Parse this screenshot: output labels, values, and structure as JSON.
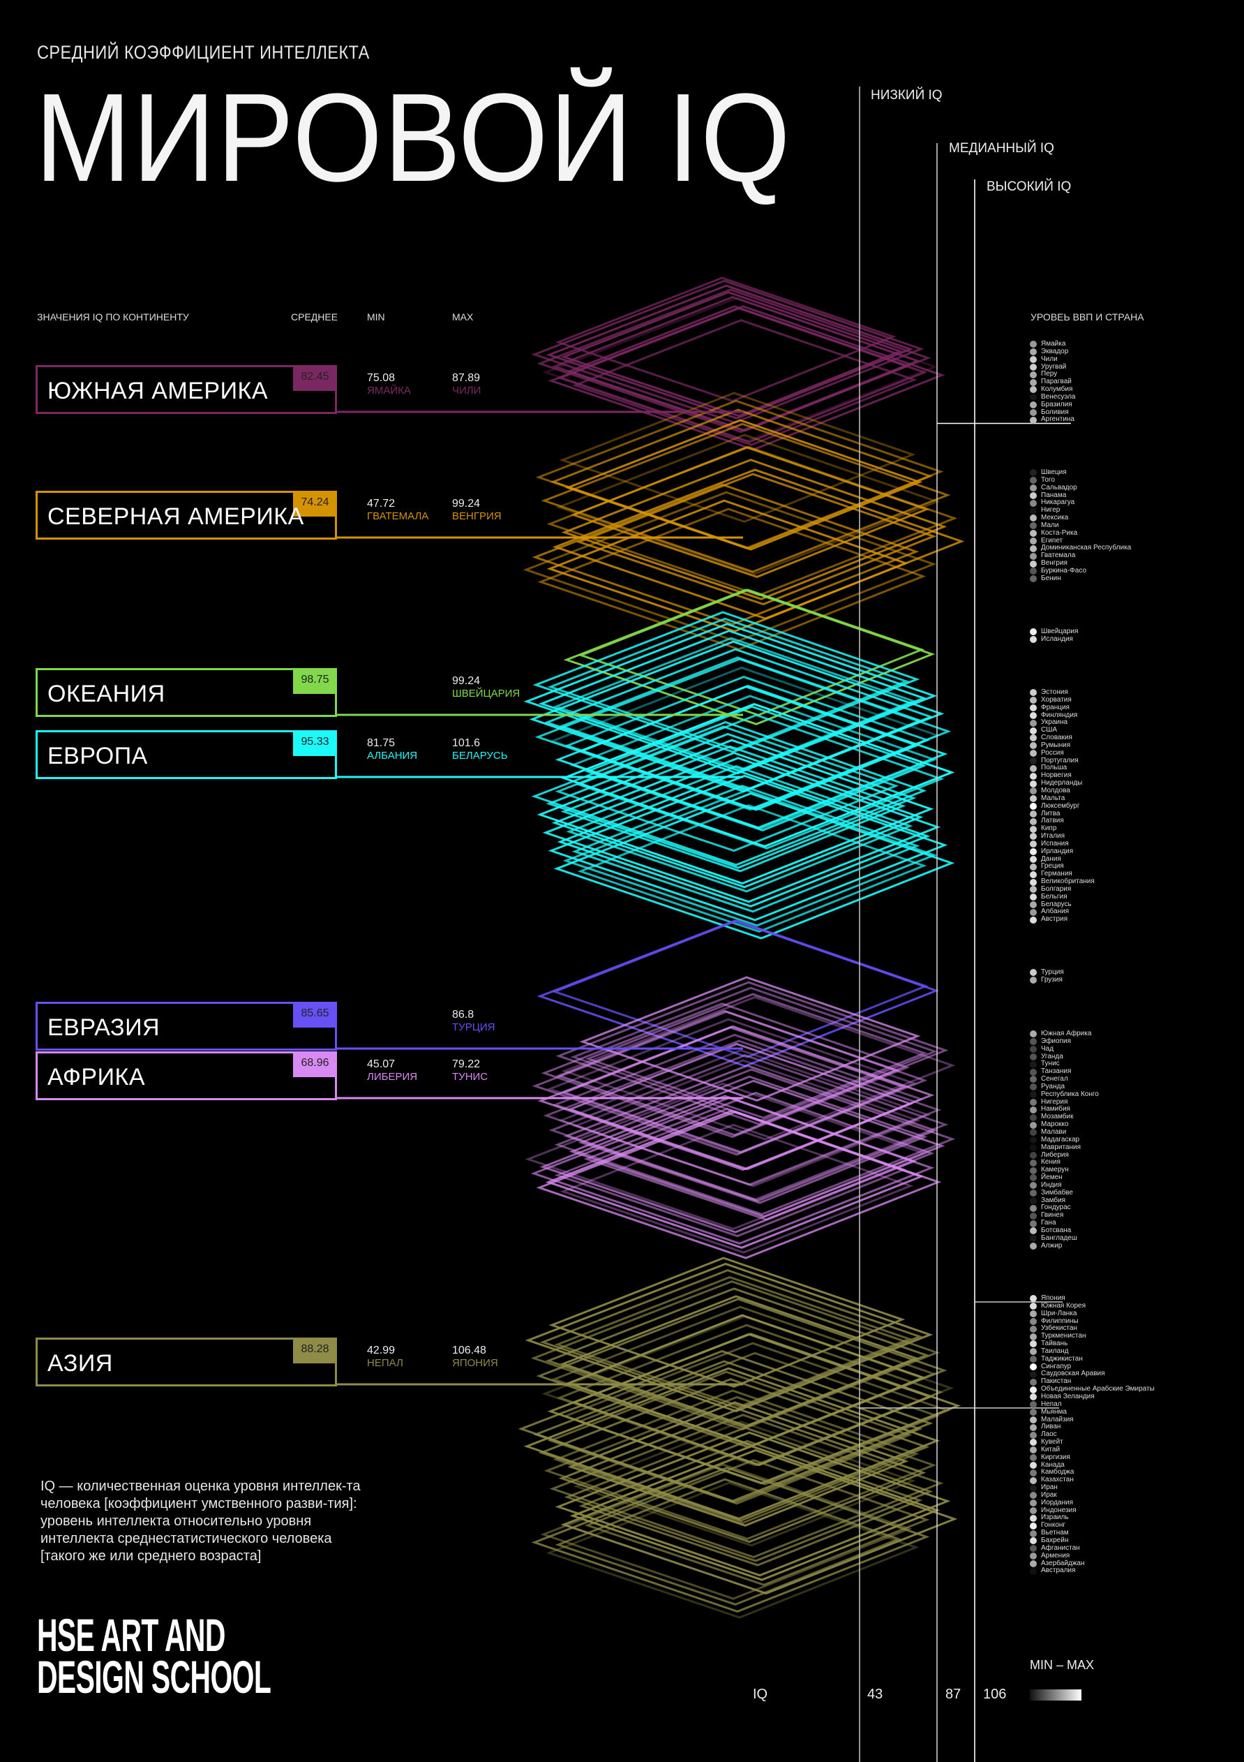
{
  "header": {
    "subtitle": "СРЕДНИЙ КОЭФФИЦИЕНТ ИНТЕЛЛЕКТА",
    "title": "МИРОВОЙ IQ"
  },
  "table_headers": {
    "continent": "ЗНАЧЕНИЯ IQ ПО КОНТИНЕНТУ",
    "mean": "СРЕДНЕЕ",
    "min": "MIN",
    "max": "MAX",
    "gdp": "УРОВЕЬ ВВП И СТРАНА"
  },
  "reference_lines": {
    "low": "НИЗКИЙ IQ",
    "median": "МЕДИАННЫЙ IQ",
    "high": "ВЫСОКИЙ IQ"
  },
  "legend": {
    "iq_label": "IQ",
    "low_value": "43",
    "median_value": "87",
    "high_value": "106",
    "gradient_label": "MIN – MAX"
  },
  "description": "IQ — количественная оценка уровня интеллек-та человека [коэффициент умственного разви-тия]: уровень интеллекта относительно уровня интеллекта среднестатистического человека [такого же или среднего возраста]",
  "logo": {
    "line1": "HSE ART AND",
    "line2": "DESIGN SCHOOL"
  },
  "chart_data": {
    "type": "stacked-diamonds",
    "title": "МИРОВОЙ IQ",
    "reference_values": {
      "low": 43,
      "median": 87,
      "high": 106
    },
    "continents": [
      {
        "name": "ЮЖНАЯ АМЕРИКА",
        "mean": "82.45",
        "color": "#7b2862",
        "min": {
          "value": "75.08",
          "country": "ЯМАЙКА"
        },
        "max": {
          "value": "87.89",
          "country": "ЧИЛИ"
        },
        "countries": [
          [
            "Ямайка",
            "#999999"
          ],
          [
            "Эквадор",
            "#aaaaaa"
          ],
          [
            "Чили",
            "#cccccc"
          ],
          [
            "Уругвай",
            "#cccccc"
          ],
          [
            "Перу",
            "#aaaaaa"
          ],
          [
            "Парагвай",
            "#aaaaaa"
          ],
          [
            "Колумбия",
            "#bbbbbb"
          ],
          [
            "Венесуэла",
            "#151515"
          ],
          [
            "Бразилия",
            "#aaaaaa"
          ],
          [
            "Боливия",
            "#999999"
          ],
          [
            "Аргентина",
            "#bbbbbb"
          ]
        ]
      },
      {
        "name": "СЕВЕРНАЯ АМЕРИКА",
        "mean": "74.24",
        "color": "#d69300",
        "min": {
          "value": "47.72",
          "country": "ГВАТЕМАЛА"
        },
        "max": {
          "value": "99.24",
          "country": "ВЕНГРИЯ"
        },
        "countries": [
          [
            "Швеция",
            "#222222"
          ],
          [
            "Того",
            "#666666"
          ],
          [
            "Сальвадор",
            "#999999"
          ],
          [
            "Панама",
            "#cccccc"
          ],
          [
            "Никарагуа",
            "#888888"
          ],
          [
            "Нигер",
            "#151515"
          ],
          [
            "Мексика",
            "#bbbbbb"
          ],
          [
            "Мали",
            "#666666"
          ],
          [
            "Коста-Рика",
            "#bbbbbb"
          ],
          [
            "Египет",
            "#aaaaaa"
          ],
          [
            "Доминиканская Республика",
            "#bbbbbb"
          ],
          [
            "Гватемала",
            "#999999"
          ],
          [
            "Венгрия",
            "#cccccc"
          ],
          [
            "Буркина-Фасо",
            "#555555"
          ],
          [
            "Бенин",
            "#666666"
          ]
        ]
      },
      {
        "name": "ОКЕАНИЯ",
        "mean": "98.75",
        "color": "#82d84b",
        "min": null,
        "max": {
          "value": "99.24",
          "country": "ШВЕЙЦАРИЯ"
        },
        "countries": [
          [
            "Швейцария",
            "#eeeeee"
          ],
          [
            "Исландия",
            "#dddddd"
          ]
        ]
      },
      {
        "name": "ЕВРОПА",
        "mean": "95.33",
        "color": "#1cf9f9",
        "min": {
          "value": "81.75",
          "country": "АЛБАНИЯ"
        },
        "max": {
          "value": "101.6",
          "country": "БЕЛАРУСЬ"
        },
        "countries": [
          [
            "Эстония",
            "#cccccc"
          ],
          [
            "Хорватия",
            "#bbbbbb"
          ],
          [
            "Франция",
            "#dddddd"
          ],
          [
            "Финляндия",
            "#dddddd"
          ],
          [
            "Украина",
            "#999999"
          ],
          [
            "США",
            "#dddddd"
          ],
          [
            "Словакия",
            "#cccccc"
          ],
          [
            "Румыния",
            "#bbbbbb"
          ],
          [
            "Россия",
            "#bbbbbb"
          ],
          [
            "Португалия",
            "#222222"
          ],
          [
            "Польша",
            "#bbbbbb"
          ],
          [
            "Норвегия",
            "#dddddd"
          ],
          [
            "Нидерланды",
            "#dddddd"
          ],
          [
            "Молдова",
            "#999999"
          ],
          [
            "Мальта",
            "#cccccc"
          ],
          [
            "Люксембург",
            "#ffffff"
          ],
          [
            "Литва",
            "#bbbbbb"
          ],
          [
            "Латвия",
            "#bbbbbb"
          ],
          [
            "Кипр",
            "#cccccc"
          ],
          [
            "Италия",
            "#cccccc"
          ],
          [
            "Испания",
            "#cccccc"
          ],
          [
            "Ирландия",
            "#eeeeee"
          ],
          [
            "Дания",
            "#dddddd"
          ],
          [
            "Греция",
            "#bbbbbb"
          ],
          [
            "Германия",
            "#dddddd"
          ],
          [
            "Великобритания",
            "#dddddd"
          ],
          [
            "Болгария",
            "#bbbbbb"
          ],
          [
            "Бельгия",
            "#dddddd"
          ],
          [
            "Беларусь",
            "#aaaaaa"
          ],
          [
            "Албания",
            "#999999"
          ],
          [
            "Австрия",
            "#dddddd"
          ]
        ]
      },
      {
        "name": "ЕВРАЗИЯ",
        "mean": "85.65",
        "color": "#6650f6",
        "min": null,
        "max": {
          "value": "86.8",
          "country": "ТУРЦИЯ"
        },
        "countries": [
          [
            "Турция",
            "#cccccc"
          ],
          [
            "Грузия",
            "#aaaaaa"
          ]
        ]
      },
      {
        "name": "АФРИКА",
        "mean": "68.96",
        "color": "#d98af2",
        "min": {
          "value": "45.07",
          "country": "ЛИБЕРИЯ"
        },
        "max": {
          "value": "79.22",
          "country": "ТУНИС"
        },
        "countries": [
          [
            "Южная Африка",
            "#aaaaaa"
          ],
          [
            "Эфиопия",
            "#555555"
          ],
          [
            "Чад",
            "#444444"
          ],
          [
            "Уганда",
            "#555555"
          ],
          [
            "Тунис",
            "#1a1a1a"
          ],
          [
            "Танзания",
            "#555555"
          ],
          [
            "Сенегал",
            "#666666"
          ],
          [
            "Руанда",
            "#555555"
          ],
          [
            "Республика Конго",
            "#1a1a1a"
          ],
          [
            "Нигерия",
            "#777777"
          ],
          [
            "Намибия",
            "#999999"
          ],
          [
            "Мозамбик",
            "#444444"
          ],
          [
            "Марокко",
            "#999999"
          ],
          [
            "Малави",
            "#444444"
          ],
          [
            "Мадагаскар",
            "#151515"
          ],
          [
            "Мавритания",
            "#111111"
          ],
          [
            "Либерия",
            "#444444"
          ],
          [
            "Кения",
            "#666666"
          ],
          [
            "Камерун",
            "#666666"
          ],
          [
            "Йемен",
            "#555555"
          ],
          [
            "Индия",
            "#888888"
          ],
          [
            "Зимбабве",
            "#666666"
          ],
          [
            "Замбия",
            "#1a1a1a"
          ],
          [
            "Гондурас",
            "#888888"
          ],
          [
            "Гвинея",
            "#555555"
          ],
          [
            "Гана",
            "#777777"
          ],
          [
            "Ботсвана",
            "#bbbbbb"
          ],
          [
            "Бангладеш",
            "#1a1a1a"
          ],
          [
            "Алжир",
            "#aaaaaa"
          ]
        ]
      },
      {
        "name": "АЗИЯ",
        "mean": "88.28",
        "color": "#8f8c47",
        "min": {
          "value": "42.99",
          "country": "НЕПАЛ"
        },
        "max": {
          "value": "106.48",
          "country": "ЯПОНИЯ"
        },
        "countries": [
          [
            "Япония",
            "#dddddd"
          ],
          [
            "Южная Корея",
            "#dddddd"
          ],
          [
            "Шри-Ланка",
            "#aaaaaa"
          ],
          [
            "Филиппины",
            "#888888"
          ],
          [
            "Узбекистан",
            "#888888"
          ],
          [
            "Туркменистан",
            "#aaaaaa"
          ],
          [
            "Тайвань",
            "#dddddd"
          ],
          [
            "Таиланд",
            "#aaaaaa"
          ],
          [
            "Таджикистан",
            "#666666"
          ],
          [
            "Сингапур",
            "#ffffff"
          ],
          [
            "Саудовская Аравия",
            "#1a1a1a"
          ],
          [
            "Пакистан",
            "#777777"
          ],
          [
            "Объединенные Арабские Эмираты",
            "#eeeeee"
          ],
          [
            "Новая Зеландия",
            "#dddddd"
          ],
          [
            "Непал",
            "#666666"
          ],
          [
            "Мьянма",
            "#777777"
          ],
          [
            "Малайзия",
            "#bbbbbb"
          ],
          [
            "Ливан",
            "#aaaaaa"
          ],
          [
            "Лаос",
            "#888888"
          ],
          [
            "Кувейт",
            "#dddddd"
          ],
          [
            "Китай",
            "#aaaaaa"
          ],
          [
            "Киргизия",
            "#777777"
          ],
          [
            "Канада",
            "#dddddd"
          ],
          [
            "Камбоджа",
            "#777777"
          ],
          [
            "Казахстан",
            "#bbbbbb"
          ],
          [
            "Иран",
            "#1a1a1a"
          ],
          [
            "Ирак",
            "#888888"
          ],
          [
            "Иордания",
            "#999999"
          ],
          [
            "Индонезия",
            "#999999"
          ],
          [
            "Израиль",
            "#dddddd"
          ],
          [
            "Гонконг",
            "#eeeeee"
          ],
          [
            "Вьетнам",
            "#888888"
          ],
          [
            "Бахрейн",
            "#dddddd"
          ],
          [
            "Афганистан",
            "#555555"
          ],
          [
            "Армения",
            "#999999"
          ],
          [
            "Азербайджан",
            "#aaaaaa"
          ],
          [
            "Австралия",
            "#111111"
          ]
        ]
      }
    ]
  }
}
